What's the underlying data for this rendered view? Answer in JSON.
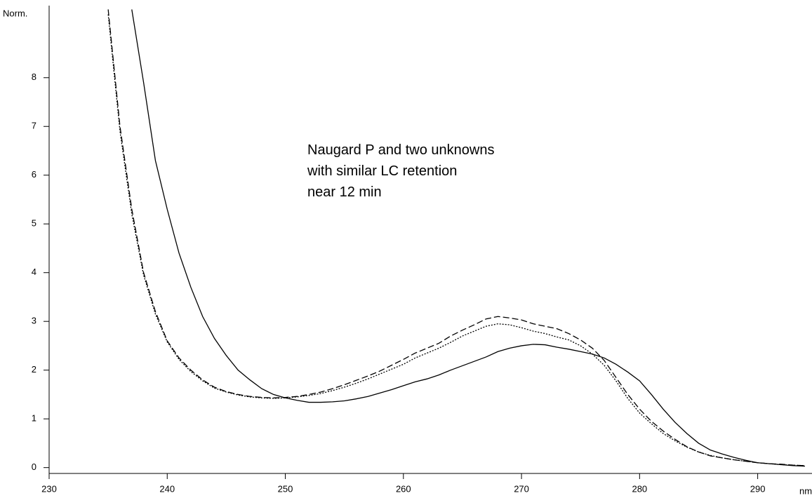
{
  "chart_data": {
    "type": "line",
    "annotation": [
      "Naugard P and two unknowns",
      "with similar LC retention",
      "near 12 min"
    ],
    "y_label": "Norm.",
    "x_label": "nm",
    "xlim": [
      230,
      294.6
    ],
    "ylim": [
      -0.12,
      9.45
    ],
    "xticks": [
      230,
      240,
      250,
      260,
      270,
      280,
      290
    ],
    "yticks": [
      0,
      1,
      2,
      3,
      4,
      5,
      6,
      7,
      8
    ],
    "x": [
      235,
      236,
      237,
      238,
      239,
      240,
      241,
      242,
      243,
      244,
      245,
      246,
      247,
      248,
      249,
      250,
      251,
      252,
      253,
      254,
      255,
      256,
      257,
      258,
      259,
      260,
      261,
      262,
      263,
      264,
      265,
      266,
      267,
      268,
      269,
      270,
      271,
      272,
      273,
      274,
      275,
      276,
      277,
      278,
      279,
      280,
      281,
      282,
      283,
      284,
      285,
      286,
      287,
      288,
      289,
      290,
      291,
      292,
      293,
      294
    ],
    "series": [
      {
        "color": "#000000",
        "dash": "solid",
        "values": [
          null,
          null,
          9.4,
          7.9,
          6.3,
          5.3,
          4.4,
          3.7,
          3.1,
          2.65,
          2.3,
          2.0,
          1.8,
          1.62,
          1.5,
          1.43,
          1.38,
          1.34,
          1.34,
          1.35,
          1.37,
          1.41,
          1.46,
          1.53,
          1.6,
          1.68,
          1.76,
          1.82,
          1.9,
          2.0,
          2.09,
          2.18,
          2.27,
          2.38,
          2.45,
          2.5,
          2.53,
          2.52,
          2.47,
          2.43,
          2.38,
          2.33,
          2.25,
          2.12,
          1.96,
          1.78,
          1.5,
          1.2,
          0.93,
          0.7,
          0.5,
          0.36,
          0.28,
          0.21,
          0.15,
          0.1,
          0.08,
          0.06,
          0.04,
          0.03
        ]
      },
      {
        "color": "#000000",
        "dash": "dashed",
        "values": [
          9.4,
          7.0,
          5.3,
          4.0,
          3.2,
          2.6,
          2.25,
          2.0,
          1.8,
          1.65,
          1.56,
          1.5,
          1.46,
          1.44,
          1.43,
          1.44,
          1.46,
          1.5,
          1.55,
          1.62,
          1.7,
          1.79,
          1.88,
          1.98,
          2.1,
          2.22,
          2.35,
          2.45,
          2.55,
          2.7,
          2.82,
          2.93,
          3.05,
          3.1,
          3.07,
          3.03,
          2.95,
          2.9,
          2.85,
          2.75,
          2.62,
          2.45,
          2.2,
          1.85,
          1.5,
          1.2,
          0.95,
          0.75,
          0.58,
          0.43,
          0.32,
          0.24,
          0.2,
          0.16,
          0.13,
          0.1,
          0.08,
          0.07,
          0.05,
          0.04
        ]
      },
      {
        "color": "#000000",
        "dash": "dotted",
        "values": [
          9.3,
          6.9,
          5.2,
          3.95,
          3.15,
          2.58,
          2.22,
          1.97,
          1.78,
          1.63,
          1.55,
          1.49,
          1.45,
          1.43,
          1.42,
          1.43,
          1.45,
          1.48,
          1.52,
          1.58,
          1.65,
          1.73,
          1.82,
          1.92,
          2.02,
          2.12,
          2.25,
          2.35,
          2.45,
          2.57,
          2.7,
          2.8,
          2.9,
          2.95,
          2.93,
          2.87,
          2.8,
          2.75,
          2.68,
          2.62,
          2.5,
          2.33,
          2.1,
          1.78,
          1.42,
          1.12,
          0.9,
          0.7,
          0.55,
          0.42,
          0.32,
          0.25,
          0.2,
          0.16,
          0.13,
          0.1,
          0.08,
          0.06,
          0.05,
          0.04
        ]
      }
    ]
  }
}
